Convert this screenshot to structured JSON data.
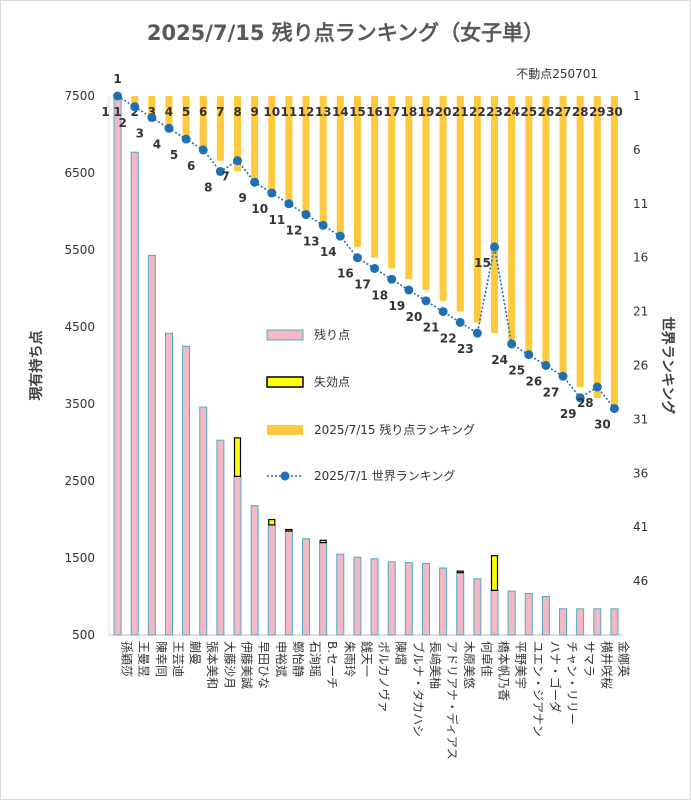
{
  "chart_data": {
    "type": "bar",
    "title": "2025/7/15 残り点ランキング（女子単）",
    "note": "不動点250701",
    "ylabel": "現有持ち点",
    "y2label": "世界ランキング",
    "ylim": [
      500,
      7500
    ],
    "yticks": [
      500,
      1500,
      2500,
      3500,
      4500,
      5500,
      6500,
      7500
    ],
    "y2lim": [
      1,
      51
    ],
    "y2ticks": [
      1,
      6,
      11,
      16,
      21,
      26,
      31,
      36,
      41,
      46
    ],
    "categories": [
      "孫穎莎",
      "王曼昱",
      "陳幸同",
      "王芸迪",
      "蒯曼",
      "張本美和",
      "大藤沙月",
      "伊藤美誠",
      "早田ひな",
      "申裕斌",
      "鄭怡静",
      "石洵瑶",
      "B.セーチ",
      "朱雨玲",
      "銭天一",
      "ポルカノヴァ",
      "陳熠",
      "ブルナ・タカハシ",
      "長﨑美柚",
      "アドリアナ・ディアス",
      "木原美悠",
      "何卓佳",
      "橋本帆乃香",
      "平野美宇",
      "ユエン・ジアナン",
      "ハナ・ゴーダ",
      "チャン・リリー",
      "サマラ",
      "横井咲桜",
      "金娜英"
    ],
    "legend": [
      "残り点",
      "失効点",
      "2025/7/15 残り点ランキング",
      "2025/7/1 世界ランキング"
    ],
    "legend_placement": "center",
    "colors": {
      "remaining": "#f4b8c4",
      "remaining_edge": "#4bacc6",
      "lost": "#ffff00",
      "lost_edge": "#000000",
      "rank15": "#ffc83d",
      "rank1": "#1f6fb5",
      "axis": "#bfbfbf"
    },
    "series": [
      {
        "name": "残り点",
        "axis": "left",
        "values": [
          7500,
          6770,
          5430,
          4420,
          4250,
          3460,
          3030,
          2560,
          2180,
          1930,
          1850,
          1750,
          1700,
          1550,
          1510,
          1490,
          1450,
          1440,
          1430,
          1370,
          1310,
          1230,
          1080,
          1070,
          1040,
          1000,
          840,
          840,
          840,
          840
        ]
      },
      {
        "name": "失効点",
        "axis": "left",
        "base": "残り点",
        "values": [
          0,
          0,
          0,
          0,
          0,
          0,
          0,
          500,
          0,
          70,
          20,
          0,
          30,
          0,
          0,
          0,
          0,
          0,
          0,
          0,
          20,
          0,
          450,
          0,
          0,
          0,
          0,
          0,
          0,
          0
        ]
      },
      {
        "name": "2025/7/15 残り点ランキング",
        "axis": "right",
        "values": [
          1,
          2,
          3,
          4,
          5,
          6,
          7,
          8,
          9,
          10,
          11,
          12,
          13,
          14,
          15,
          16,
          17,
          18,
          19,
          20,
          21,
          22,
          23,
          24,
          25,
          26,
          27,
          28,
          29,
          30
        ]
      },
      {
        "name": "2025/7/1 世界ランキング",
        "axis": "right",
        "values": [
          1,
          2,
          3,
          4,
          5,
          6,
          8,
          7,
          9,
          10,
          11,
          12,
          13,
          14,
          16,
          17,
          18,
          19,
          20,
          21,
          22,
          23,
          15,
          24,
          25,
          26,
          27,
          29,
          28,
          30
        ]
      }
    ]
  }
}
